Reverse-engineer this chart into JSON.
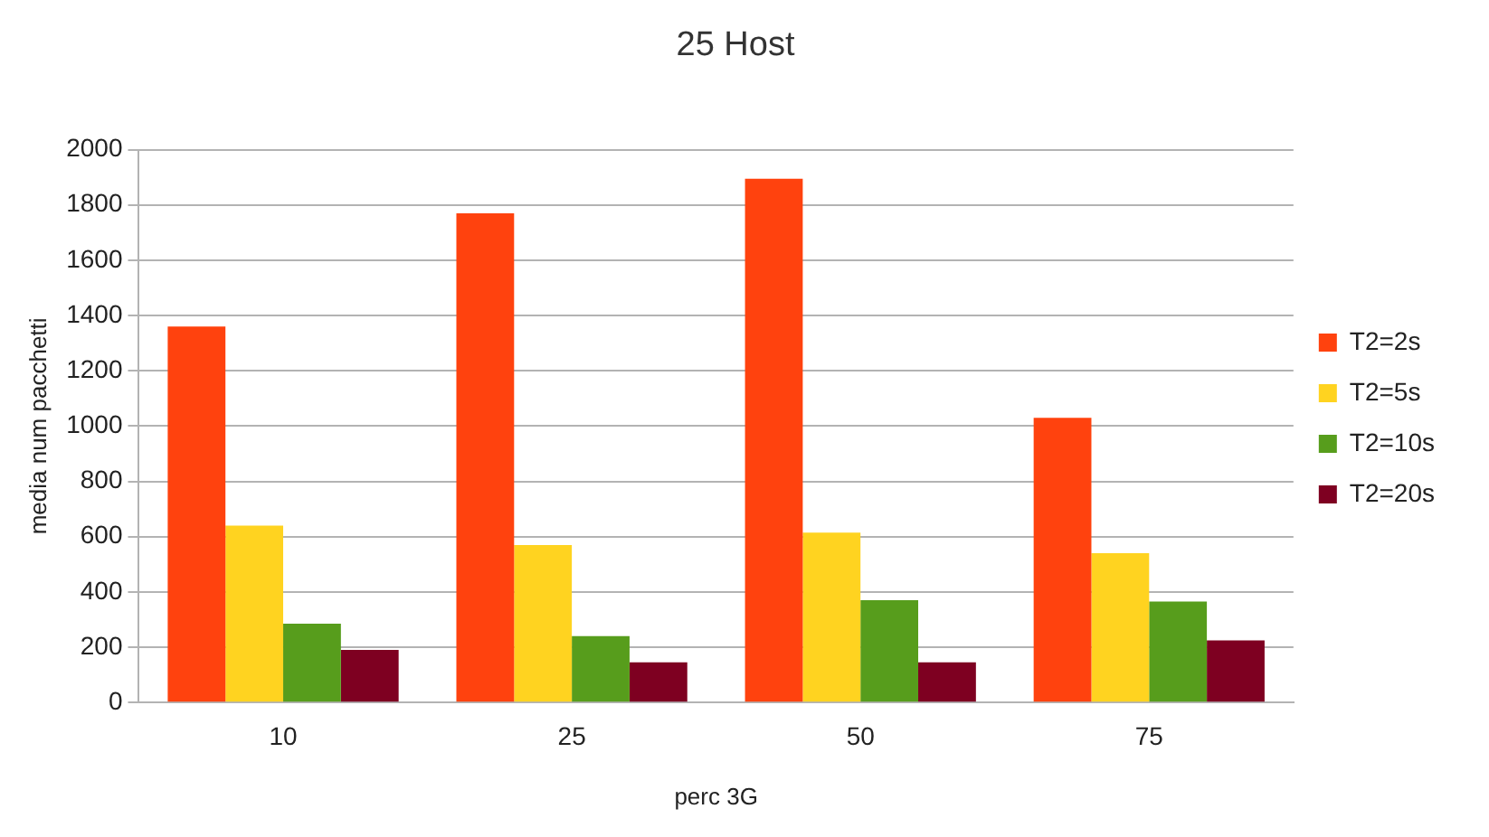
{
  "chart_data": {
    "type": "bar",
    "title": "25 Host",
    "xlabel": "perc 3G",
    "ylabel": "media num pacchetti",
    "categories": [
      "10",
      "25",
      "50",
      "75"
    ],
    "series": [
      {
        "name": "T2=2s",
        "color": "#ff420e",
        "values": [
          1360,
          1770,
          1895,
          1030
        ]
      },
      {
        "name": "T2=5s",
        "color": "#ffd320",
        "values": [
          640,
          570,
          615,
          540
        ]
      },
      {
        "name": "T2=10s",
        "color": "#579d1c",
        "values": [
          285,
          240,
          370,
          365
        ]
      },
      {
        "name": "T2=20s",
        "color": "#7e0021",
        "values": [
          190,
          145,
          145,
          225
        ]
      }
    ],
    "ylim": [
      0,
      2000
    ],
    "yticks": [
      0,
      200,
      400,
      600,
      800,
      1000,
      1200,
      1400,
      1600,
      1800,
      2000
    ],
    "grid": "y",
    "legend": "right"
  }
}
